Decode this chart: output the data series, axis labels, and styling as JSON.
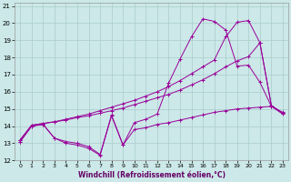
{
  "xlabel": "Windchill (Refroidissement éolien,°C)",
  "background_color": "#cce8e8",
  "grid_color": "#aacccc",
  "line_color": "#990099",
  "xlim": [
    -0.5,
    23.5
  ],
  "ylim": [
    12,
    21.2
  ],
  "xticks": [
    0,
    1,
    2,
    3,
    4,
    5,
    6,
    7,
    8,
    9,
    10,
    11,
    12,
    13,
    14,
    15,
    16,
    17,
    18,
    19,
    20,
    21,
    22,
    23
  ],
  "yticks": [
    12,
    13,
    14,
    15,
    16,
    17,
    18,
    19,
    20,
    21
  ],
  "line1_y": [
    13.1,
    14.0,
    14.1,
    13.3,
    13.0,
    12.9,
    12.7,
    12.3,
    14.6,
    12.9,
    13.8,
    13.9,
    14.1,
    14.2,
    14.35,
    14.5,
    14.65,
    14.8,
    14.9,
    15.0,
    15.05,
    15.1,
    15.15,
    14.7
  ],
  "line2_y": [
    13.1,
    14.0,
    14.1,
    13.3,
    13.1,
    13.0,
    12.8,
    12.35,
    14.65,
    12.9,
    14.2,
    14.4,
    14.7,
    16.5,
    17.9,
    19.2,
    20.25,
    20.1,
    19.6,
    17.5,
    17.55,
    16.55,
    15.15,
    14.8
  ],
  "line3_y": [
    13.2,
    14.05,
    14.15,
    14.25,
    14.35,
    14.5,
    14.6,
    14.75,
    14.9,
    15.05,
    15.25,
    15.45,
    15.65,
    15.85,
    16.1,
    16.4,
    16.7,
    17.05,
    17.45,
    17.8,
    18.05,
    18.85,
    15.2,
    14.75
  ],
  "line4_y": [
    13.2,
    14.05,
    14.15,
    14.25,
    14.4,
    14.55,
    14.7,
    14.9,
    15.1,
    15.3,
    15.5,
    15.75,
    16.0,
    16.3,
    16.65,
    17.05,
    17.45,
    17.85,
    19.2,
    20.05,
    20.15,
    18.85,
    15.2,
    14.75
  ]
}
